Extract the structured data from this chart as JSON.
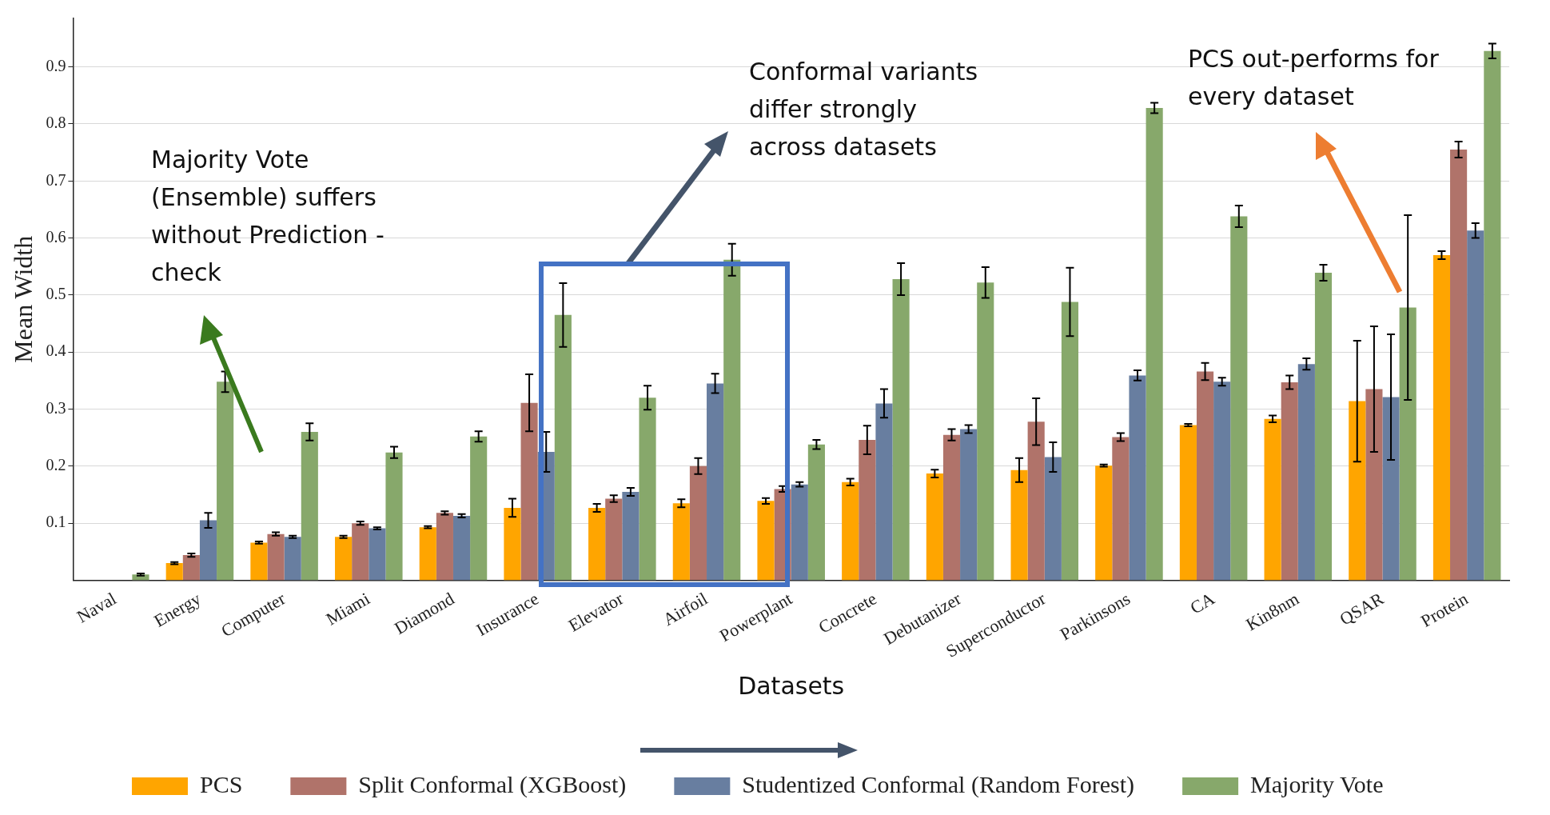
{
  "chart_data": {
    "type": "bar",
    "xlabel": "Datasets",
    "ylabel": "Mean Width",
    "categories": [
      "Naval",
      "Energy",
      "Computer",
      "Miami",
      "Diamond",
      "Insurance",
      "Elevator",
      "Airfoil",
      "Powerplant",
      "Concrete",
      "Debutanizer",
      "Superconductor",
      "Parkinsons",
      "CA",
      "Kin8nm",
      "QSAR",
      "Protein"
    ],
    "series": [
      {
        "name": "PCS",
        "color": "#ffa500",
        "values": [
          null,
          0.03,
          0.066,
          0.076,
          0.093,
          0.127,
          0.127,
          0.135,
          0.139,
          0.172,
          0.187,
          0.193,
          0.201,
          0.272,
          0.283,
          0.314,
          0.57
        ],
        "errors": [
          null,
          0.002,
          0.002,
          0.002,
          0.002,
          0.016,
          0.007,
          0.007,
          0.005,
          0.006,
          0.007,
          0.021,
          0.002,
          0.002,
          0.006,
          0.106,
          0.007
        ]
      },
      {
        "name": "Split Conformal (XGBoost)",
        "color": "#b0736a",
        "values": [
          null,
          0.044,
          0.081,
          0.1,
          0.118,
          0.311,
          0.143,
          0.2,
          0.16,
          0.246,
          0.255,
          0.278,
          0.251,
          0.366,
          0.347,
          0.335,
          0.755
        ],
        "errors": [
          null,
          0.003,
          0.003,
          0.003,
          0.003,
          0.05,
          0.006,
          0.014,
          0.005,
          0.025,
          0.01,
          0.041,
          0.007,
          0.015,
          0.012,
          0.11,
          0.014
        ]
      },
      {
        "name": "Studentized Conformal (Random Forest)",
        "color": "#687ea0",
        "values": [
          null,
          0.105,
          0.076,
          0.091,
          0.113,
          0.225,
          0.155,
          0.345,
          0.168,
          0.31,
          0.265,
          0.216,
          0.359,
          0.348,
          0.379,
          0.321,
          0.613
        ],
        "errors": [
          null,
          0.013,
          0.002,
          0.002,
          0.003,
          0.035,
          0.007,
          0.017,
          0.004,
          0.025,
          0.007,
          0.026,
          0.009,
          0.007,
          0.01,
          0.11,
          0.013
        ]
      },
      {
        "name": "Majority Vote",
        "color": "#87a86b",
        "values": [
          0.01,
          0.348,
          0.26,
          0.224,
          0.252,
          0.465,
          0.32,
          0.562,
          0.238,
          0.528,
          0.522,
          0.488,
          0.828,
          0.638,
          0.539,
          0.478,
          0.928
        ],
        "errors": [
          0.002,
          0.018,
          0.015,
          0.01,
          0.009,
          0.056,
          0.021,
          0.028,
          0.008,
          0.028,
          0.027,
          0.06,
          0.009,
          0.019,
          0.014,
          0.162,
          0.013
        ]
      }
    ],
    "ylim": [
      0,
      0.985
    ],
    "yticks": [
      0.1,
      0.2,
      0.3,
      0.4,
      0.5,
      0.6,
      0.7,
      0.8,
      0.9
    ],
    "grid": "y",
    "legend": "bottom",
    "annotations": [
      "Majority Vote (Ensemble) suffers without Prediction -check",
      "Conformal variants differ strongly across datasets",
      "PCS out-performs for every dataset"
    ]
  }
}
